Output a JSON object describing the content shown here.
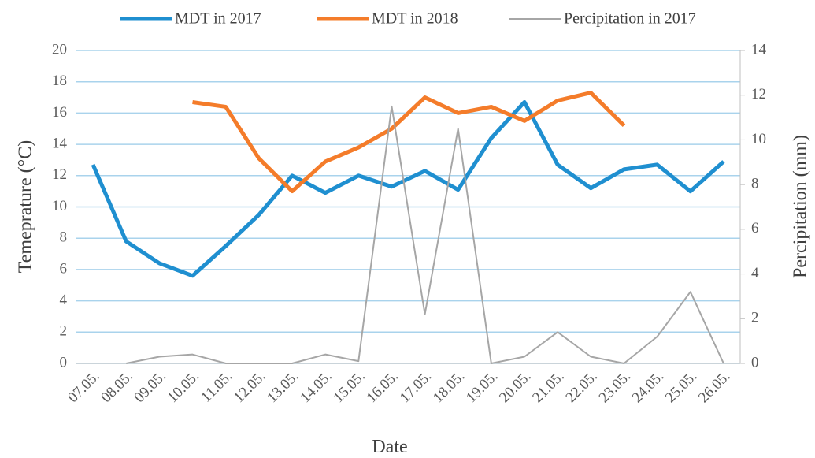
{
  "chart_data": {
    "type": "line",
    "x_label": "Date",
    "y_label": "Temeprature (°C)",
    "y2_label": "Percipitation (mm)",
    "categories": [
      "07.05.",
      "08.05.",
      "09.05.",
      "10.05.",
      "11.05.",
      "12.05.",
      "13.05.",
      "14.05.",
      "15.05.",
      "16.05.",
      "17.05.",
      "18.05.",
      "19.05.",
      "20.05.",
      "21.05.",
      "22.05.",
      "23.05.",
      "24.05.",
      "25.05.",
      "26.05."
    ],
    "series": [
      {
        "name": "MDT in 2017",
        "color": "#1f8fd0",
        "width": 5,
        "values": [
          12.7,
          7.8,
          6.4,
          5.6,
          7.5,
          9.5,
          12.0,
          10.9,
          12.0,
          11.3,
          12.3,
          11.1,
          14.4,
          16.7,
          12.7,
          11.2,
          12.4,
          12.7,
          11.0,
          12.9
        ]
      },
      {
        "name": "MDT in 2018",
        "color": "#f47c2a",
        "width": 5,
        "values": [
          null,
          null,
          null,
          16.7,
          16.4,
          13.1,
          11.0,
          12.9,
          13.8,
          15.0,
          17.0,
          16.0,
          16.4,
          15.5,
          16.8,
          17.3,
          15.2,
          null,
          null,
          null
        ]
      },
      {
        "name": "Percipitation in 2017",
        "color": "#a6a6a6",
        "width": 2,
        "axis": "y2",
        "values": [
          null,
          0,
          0.3,
          0.4,
          0,
          0,
          0,
          0.4,
          0.1,
          11.5,
          2.2,
          10.5,
          0,
          0.3,
          1.4,
          0.3,
          0,
          1.2,
          3.2,
          0
        ]
      }
    ],
    "ylim": [
      0,
      20
    ],
    "yticks": [
      0,
      2,
      4,
      6,
      8,
      10,
      12,
      14,
      16,
      18,
      20
    ],
    "y2lim": [
      0,
      14
    ],
    "y2ticks": [
      0,
      2,
      4,
      6,
      8,
      10,
      12,
      14
    ],
    "grid": true,
    "grid_color": "#a9d3ec",
    "legend": "top"
  }
}
